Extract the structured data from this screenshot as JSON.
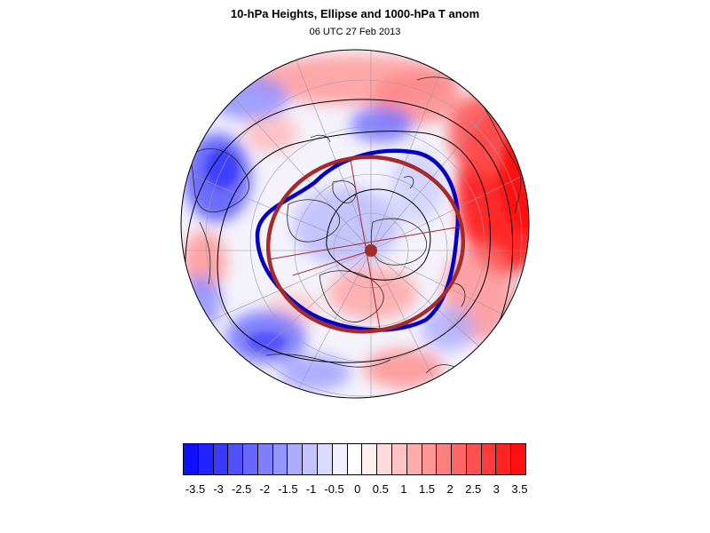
{
  "title": "10-hPa Heights, Ellipse and 1000-hPa T anom",
  "subtitle": "06 UTC 27 Feb 2013",
  "colorbar": {
    "colors": [
      "#0f0fff",
      "#2323ff",
      "#3a3aff",
      "#5050ff",
      "#6767ff",
      "#7e7eff",
      "#9595ff",
      "#acacff",
      "#c3c3ff",
      "#dadaff",
      "#f0f0ff",
      "#ffffff",
      "#fff0f0",
      "#ffdada",
      "#ffc3c3",
      "#ffacac",
      "#ff9595",
      "#ff7e7e",
      "#ff6767",
      "#ff5050",
      "#ff3a3a",
      "#ff2323",
      "#ff0f0f"
    ],
    "labels": [
      "-3.5",
      "-3",
      "-2.5",
      "-2",
      "-1.5",
      "-1",
      "-0.5",
      "0",
      "0.5",
      "1",
      "1.5",
      "2",
      "2.5",
      "3",
      "3.5"
    ]
  },
  "legend_colors": {
    "blue_contour": "#0000c8",
    "ellipse": "#a52a2a",
    "height_contours": "#000000"
  }
}
